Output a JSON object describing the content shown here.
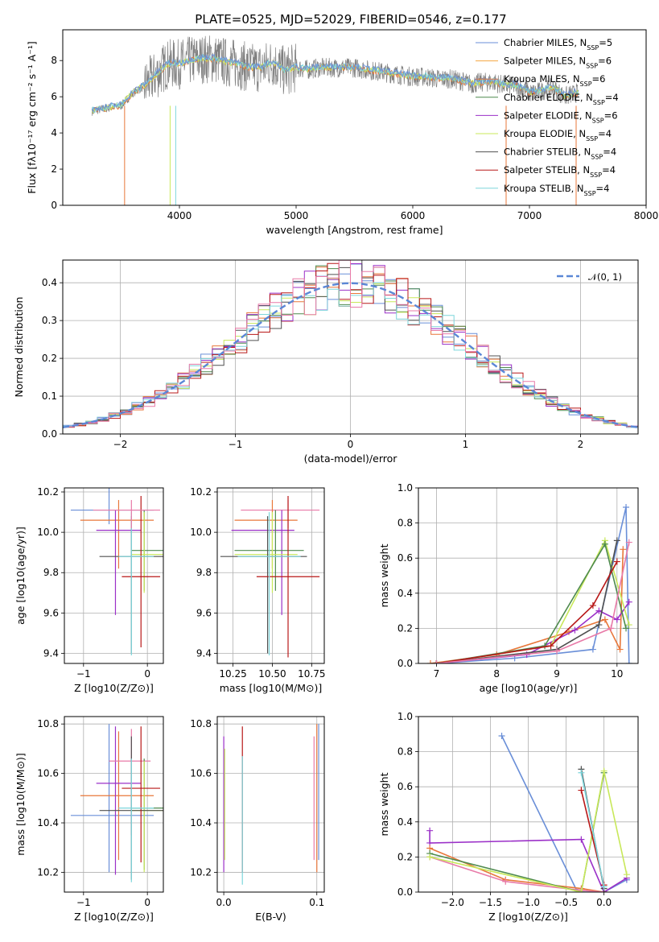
{
  "figure_title": "PLATE=0525, MJD=52029, FIBERID=0546, z=0.177",
  "colors": {
    "Chabrier MILES": "#6a8fd8",
    "Salpeter MILES": "#f4a742",
    "Kroupa MILES": "#e8773a",
    "Chabrier ELODIE": "#4e8a4e",
    "Salpeter ELODIE": "#9b30c8",
    "Kroupa ELODIE": "#c8e85a",
    "Chabrier STELIB": "#505050",
    "Salpeter STELIB": "#b81818",
    "Kroupa STELIB": "#7dd6dc",
    "data": "#808080",
    "pink": "#e87aa8",
    "gauss": "#5b87d6"
  },
  "chart_data": [
    {
      "id": "spectrum",
      "type": "line",
      "title": "PLATE=0525, MJD=52029, FIBERID=0546, z=0.177",
      "xlabel": "wavelength [Angstrom, rest frame]",
      "ylabel": "Flux [fλ10⁻¹⁷ erg cm⁻² s⁻¹ A⁻¹]",
      "xlim": [
        3000,
        8000
      ],
      "ylim": [
        0,
        9.7
      ],
      "xticks": [
        4000,
        5000,
        6000,
        7000,
        8000
      ],
      "yticks": [
        0,
        2,
        4,
        6,
        8
      ],
      "legend_position": "upper-right",
      "legend": [
        "Chabrier MILES, NSSP=5",
        "Salpeter MILES, NSSP=6",
        "Kroupa MILES, NSSP=6",
        "Chabrier ELODIE, NSSP=4",
        "Salpeter ELODIE, NSSP=6",
        "Kroupa ELODIE, NSSP=4",
        "Chabrier STELIB, NSSP=4",
        "Salpeter STELIB, NSSP=4",
        "Kroupa STELIB, NSSP=4"
      ],
      "data_series": {
        "x": [
          3250,
          3400,
          3500,
          3600,
          3700,
          3800,
          3900,
          4000,
          4100,
          4200,
          4300,
          4400,
          4500,
          4600,
          4700,
          4800,
          4900,
          5000,
          5100,
          5200,
          5300,
          5400,
          5500,
          5600,
          5700,
          5800,
          5900,
          6000,
          6100,
          6200,
          6300,
          6400,
          6500,
          6600,
          6700,
          6800,
          6900,
          7000,
          7100,
          7200,
          7300,
          7400
        ],
        "y": [
          5.2,
          5.4,
          5.5,
          6.2,
          6.6,
          7.2,
          7.8,
          7.8,
          8.0,
          8.1,
          8.1,
          7.9,
          7.8,
          7.6,
          7.6,
          7.9,
          7.4,
          7.6,
          7.5,
          7.6,
          7.6,
          7.6,
          7.6,
          7.5,
          7.4,
          7.3,
          7.2,
          7.1,
          7.1,
          7.0,
          7.0,
          6.9,
          6.7,
          6.8,
          6.8,
          6.6,
          6.6,
          6.2,
          6.3,
          6.5,
          6.0,
          6.2
        ]
      }
    },
    {
      "id": "residuals",
      "type": "line",
      "xlabel": "(data-model)/error",
      "ylabel": "Normed distribution",
      "xlim": [
        -2.5,
        2.5
      ],
      "ylim": [
        0,
        0.46
      ],
      "xticks": [
        -2,
        -1,
        0,
        1,
        2
      ],
      "yticks": [
        0.0,
        0.1,
        0.2,
        0.3,
        0.4
      ],
      "legend_position": "upper-right",
      "legend": [
        "𝒩(0, 1)"
      ],
      "gaussian": {
        "mu": 0,
        "sigma": 1
      },
      "bin_width": 0.1
    },
    {
      "id": "Z-age",
      "type": "scatter",
      "xlabel": "Z [log10(Z/Z⊙)]",
      "ylabel": "age  [log10(age/yr)]",
      "xlim": [
        -1.3,
        0.25
      ],
      "ylim": [
        9.35,
        10.22
      ],
      "xticks": [
        -1,
        0
      ],
      "yticks": [
        9.4,
        9.6,
        9.8,
        10.0,
        10.2
      ],
      "points": [
        {
          "model": "Chabrier MILES",
          "x": -0.6,
          "xerr": [
            0.6,
            0.7
          ],
          "y": 10.11,
          "yerr": [
            0.07,
            0.12
          ]
        },
        {
          "model": "Kroupa MILES",
          "x": -0.45,
          "xerr": [
            0.6,
            0.55
          ],
          "y": 10.06,
          "yerr": [
            0.24,
            0.1
          ]
        },
        {
          "model": "Salpeter ELODIE",
          "x": -0.5,
          "xerr": [
            0.3,
            0.4
          ],
          "y": 10.01,
          "yerr": [
            0.42,
            0.1
          ]
        },
        {
          "model": "Chabrier ELODIE",
          "x": -0.05,
          "xerr": [
            0.2,
            0.3
          ],
          "y": 9.91,
          "yerr": [
            0.2,
            0.2
          ]
        },
        {
          "model": "Kroupa ELODIE",
          "x": -0.05,
          "xerr": [
            0.2,
            0.3
          ],
          "y": 9.89,
          "yerr": [
            0.19,
            0.21
          ]
        },
        {
          "model": "Chabrier STELIB",
          "x": -0.25,
          "xerr": [
            0.5,
            0.5
          ],
          "y": 9.88,
          "yerr": [
            0.48,
            0.2
          ]
        },
        {
          "model": "Salpeter STELIB",
          "x": -0.1,
          "xerr": [
            0.3,
            0.3
          ],
          "y": 9.78,
          "yerr": [
            0.35,
            0.4
          ]
        },
        {
          "model": "Kroupa STELIB",
          "x": -0.25,
          "xerr": [
            0.2,
            0.35
          ],
          "y": 9.88,
          "yerr": [
            0.49,
            0.22
          ]
        },
        {
          "model": "pink",
          "x": -0.25,
          "xerr": [
            0.6,
            0.45
          ],
          "y": 10.11,
          "yerr": [
            0.09,
            0.05
          ]
        }
      ]
    },
    {
      "id": "mass-age",
      "type": "scatter",
      "xlabel": "mass [log10(M/M⊙)]",
      "ylabel": "",
      "xlim": [
        10.15,
        10.83
      ],
      "ylim": [
        9.35,
        10.22
      ],
      "xticks": [
        10.25,
        10.5,
        10.75
      ],
      "xticklabels": [
        "10.25",
        "10.50",
        "10.75"
      ],
      "yticks": [
        9.4,
        9.6,
        9.8,
        10.0,
        10.2
      ],
      "points": [
        {
          "model": "pink",
          "x": 10.6,
          "xerr": [
            0.3,
            0.2
          ],
          "y": 10.11,
          "yerr": [
            0.09,
            0.05
          ]
        },
        {
          "model": "Kroupa MILES",
          "x": 10.5,
          "xerr": [
            0.24,
            0.16
          ],
          "y": 10.06,
          "yerr": [
            0.24,
            0.1
          ]
        },
        {
          "model": "Salpeter ELODIE",
          "x": 10.56,
          "xerr": [
            0.32,
            0.08
          ],
          "y": 10.01,
          "yerr": [
            0.42,
            0.1
          ]
        },
        {
          "model": "Chabrier ELODIE",
          "x": 10.52,
          "xerr": [
            0.26,
            0.18
          ],
          "y": 9.91,
          "yerr": [
            0.2,
            0.2
          ]
        },
        {
          "model": "Kroupa ELODIE",
          "x": 10.5,
          "xerr": [
            0.24,
            0.16
          ],
          "y": 9.89,
          "yerr": [
            0.19,
            0.21
          ]
        },
        {
          "model": "Chabrier STELIB",
          "x": 10.47,
          "xerr": [
            0.3,
            0.25
          ],
          "y": 9.88,
          "yerr": [
            0.48,
            0.2
          ]
        },
        {
          "model": "Salpeter STELIB",
          "x": 10.6,
          "xerr": [
            0.2,
            0.2
          ],
          "y": 9.78,
          "yerr": [
            0.4,
            0.4
          ]
        },
        {
          "model": "Kroupa STELIB",
          "x": 10.48,
          "xerr": [
            0.2,
            0.2
          ],
          "y": 9.88,
          "yerr": [
            0.49,
            0.22
          ]
        }
      ]
    },
    {
      "id": "age-weight",
      "type": "line",
      "xlabel": "age  [log10(age/yr)]",
      "ylabel": "mass weight",
      "xlim": [
        6.7,
        10.35
      ],
      "ylim": [
        0,
        1.0
      ],
      "xticks": [
        7,
        8,
        9,
        10
      ],
      "yticks": [
        0.0,
        0.2,
        0.4,
        0.6,
        0.8,
        1.0
      ],
      "series": [
        {
          "model": "Chabrier MILES",
          "x": [
            7.0,
            8.3,
            9.6,
            10.15,
            10.2
          ],
          "y": [
            0.0,
            0.03,
            0.08,
            0.89,
            0.0
          ]
        },
        {
          "model": "Kroupa MILES",
          "x": [
            6.9,
            8.0,
            9.2,
            9.8,
            10.05,
            10.1
          ],
          "y": [
            0.0,
            0.05,
            0.18,
            0.25,
            0.08,
            0.65
          ]
        },
        {
          "model": "Salpeter ELODIE",
          "x": [
            7.0,
            8.5,
            9.3,
            9.7,
            10.0,
            10.2
          ],
          "y": [
            0.0,
            0.05,
            0.19,
            0.3,
            0.25,
            0.35
          ]
        },
        {
          "model": "Kroupa ELODIE",
          "x": [
            7.0,
            8.9,
            9.8,
            10.2
          ],
          "y": [
            0.0,
            0.1,
            0.7,
            0.22
          ]
        },
        {
          "model": "Chabrier ELODIE",
          "x": [
            7.0,
            8.8,
            9.8,
            10.15
          ],
          "y": [
            0.0,
            0.1,
            0.68,
            0.2
          ]
        },
        {
          "model": "Chabrier STELIB",
          "x": [
            7.0,
            9.0,
            9.7,
            10.0
          ],
          "y": [
            0.0,
            0.08,
            0.22,
            0.7
          ]
        },
        {
          "model": "Salpeter STELIB",
          "x": [
            7.0,
            8.9,
            9.6,
            10.0
          ],
          "y": [
            0.0,
            0.1,
            0.33,
            0.58
          ]
        },
        {
          "model": "pink",
          "x": [
            7.0,
            9.0,
            9.9,
            10.2
          ],
          "y": [
            0.0,
            0.07,
            0.2,
            0.69
          ]
        }
      ]
    },
    {
      "id": "Z-mass",
      "type": "scatter",
      "xlabel": "Z [log10(Z/Z⊙)]",
      "ylabel": "mass [log10(M/M⊙)]",
      "xlim": [
        -1.3,
        0.25
      ],
      "ylim": [
        10.12,
        10.83
      ],
      "xticks": [
        -1,
        0
      ],
      "yticks": [
        10.2,
        10.4,
        10.6,
        10.8
      ],
      "points": [
        {
          "model": "Chabrier MILES",
          "x": -0.6,
          "xerr": [
            0.6,
            0.7
          ],
          "y": 10.43,
          "yerr": [
            0.23,
            0.37
          ]
        },
        {
          "model": "Kroupa MILES",
          "x": -0.45,
          "xerr": [
            0.6,
            0.55
          ],
          "y": 10.51,
          "yerr": [
            0.26,
            0.26
          ]
        },
        {
          "model": "Salpeter ELODIE",
          "x": -0.5,
          "xerr": [
            0.3,
            0.4
          ],
          "y": 10.56,
          "yerr": [
            0.37,
            0.23
          ]
        },
        {
          "model": "pink",
          "x": -0.25,
          "xerr": [
            0.35,
            0.3
          ],
          "y": 10.65,
          "yerr": [
            0.3,
            0.13
          ]
        },
        {
          "model": "Chabrier ELODIE",
          "x": -0.05,
          "xerr": [
            0.2,
            0.3
          ],
          "y": 10.46,
          "yerr": [
            0.25,
            0.2
          ]
        },
        {
          "model": "Kroupa ELODIE",
          "x": -0.05,
          "xerr": [
            0.2,
            0.3
          ],
          "y": 10.45,
          "yerr": [
            0.25,
            0.2
          ]
        },
        {
          "model": "Chabrier STELIB",
          "x": -0.25,
          "xerr": [
            0.5,
            0.5
          ],
          "y": 10.45,
          "yerr": [
            0.28,
            0.3
          ]
        },
        {
          "model": "Salpeter STELIB",
          "x": -0.1,
          "xerr": [
            0.3,
            0.3
          ],
          "y": 10.54,
          "yerr": [
            0.3,
            0.25
          ]
        },
        {
          "model": "Kroupa STELIB",
          "x": -0.25,
          "xerr": [
            0.2,
            0.35
          ],
          "y": 10.46,
          "yerr": [
            0.3,
            0.2
          ]
        }
      ]
    },
    {
      "id": "ebv-mass",
      "type": "scatter",
      "xlabel": "E(B-V)",
      "ylabel": "",
      "xlim": [
        -0.007,
        0.108
      ],
      "ylim": [
        10.12,
        10.83
      ],
      "xticks": [
        0.0,
        0.1
      ],
      "xticklabels": [
        "0.0",
        "0.1"
      ],
      "yticks": [
        10.2,
        10.4,
        10.6,
        10.8
      ],
      "points": [
        {
          "model": "Salpeter ELODIE",
          "x": 0.0,
          "y": 10.45,
          "yerr": [
            0.25,
            0.3
          ]
        },
        {
          "model": "Kroupa ELODIE",
          "x": 0.001,
          "y": 10.45,
          "yerr": [
            0.2,
            0.25
          ]
        },
        {
          "model": "Salpeter STELIB",
          "x": 0.02,
          "y": 10.55,
          "yerr": [
            0.35,
            0.24
          ]
        },
        {
          "model": "Kroupa STELIB",
          "x": 0.02,
          "y": 10.45,
          "yerr": [
            0.3,
            0.22
          ]
        },
        {
          "model": "pink",
          "x": 0.097,
          "y": 10.55,
          "yerr": [
            0.3,
            0.2
          ]
        },
        {
          "model": "Kroupa MILES",
          "x": 0.1,
          "y": 10.5,
          "yerr": [
            0.3,
            0.3
          ]
        },
        {
          "model": "Chabrier MILES",
          "x": 0.102,
          "y": 10.5,
          "yerr": [
            0.25,
            0.3
          ]
        }
      ]
    },
    {
      "id": "Z-weight",
      "type": "line",
      "xlabel": "Z [log10(Z/Z⊙)]",
      "ylabel": "mass weight",
      "xlim": [
        -2.45,
        0.45
      ],
      "ylim": [
        0,
        1.0
      ],
      "xticks": [
        -2.0,
        -1.5,
        -1.0,
        -0.5,
        0.0
      ],
      "xticklabels": [
        "−2.0",
        "−1.5",
        "−1.0",
        "−0.5",
        "0.0"
      ],
      "yticks": [
        0.0,
        0.2,
        0.4,
        0.6,
        0.8,
        1.0
      ],
      "series": [
        {
          "model": "Chabrier MILES",
          "x": [
            -1.35,
            -0.35,
            0.0,
            0.3
          ],
          "y": [
            0.89,
            0.0,
            0.0,
            0.07
          ]
        },
        {
          "model": "Salpeter ELODIE",
          "x": [
            -2.3,
            -2.3,
            -0.3,
            0.0,
            0.3
          ],
          "y": [
            0.35,
            0.28,
            0.3,
            0.0,
            0.08
          ]
        },
        {
          "model": "Kroupa MILES",
          "x": [
            -2.3,
            -1.3,
            -0.3,
            0.0
          ],
          "y": [
            0.25,
            0.07,
            0.02,
            0.0
          ]
        },
        {
          "model": "pink",
          "x": [
            -2.3,
            -1.3,
            -0.3,
            0.0
          ],
          "y": [
            0.2,
            0.06,
            0.01,
            0.0
          ]
        },
        {
          "model": "Chabrier ELODIE",
          "x": [
            -2.3,
            -0.3,
            0.0
          ],
          "y": [
            0.22,
            0.0,
            0.68
          ]
        },
        {
          "model": "Kroupa ELODIE",
          "x": [
            -2.3,
            -0.3,
            0.0,
            0.3
          ],
          "y": [
            0.2,
            0.0,
            0.69,
            0.1
          ]
        },
        {
          "model": "Chabrier STELIB",
          "x": [
            -0.3,
            0.0
          ],
          "y": [
            0.7,
            0.02
          ]
        },
        {
          "model": "Salpeter STELIB",
          "x": [
            -0.3,
            0.0
          ],
          "y": [
            0.58,
            0.04
          ]
        },
        {
          "model": "Kroupa STELIB",
          "x": [
            -0.3,
            0.0
          ],
          "y": [
            0.68,
            0.03
          ]
        }
      ]
    }
  ]
}
